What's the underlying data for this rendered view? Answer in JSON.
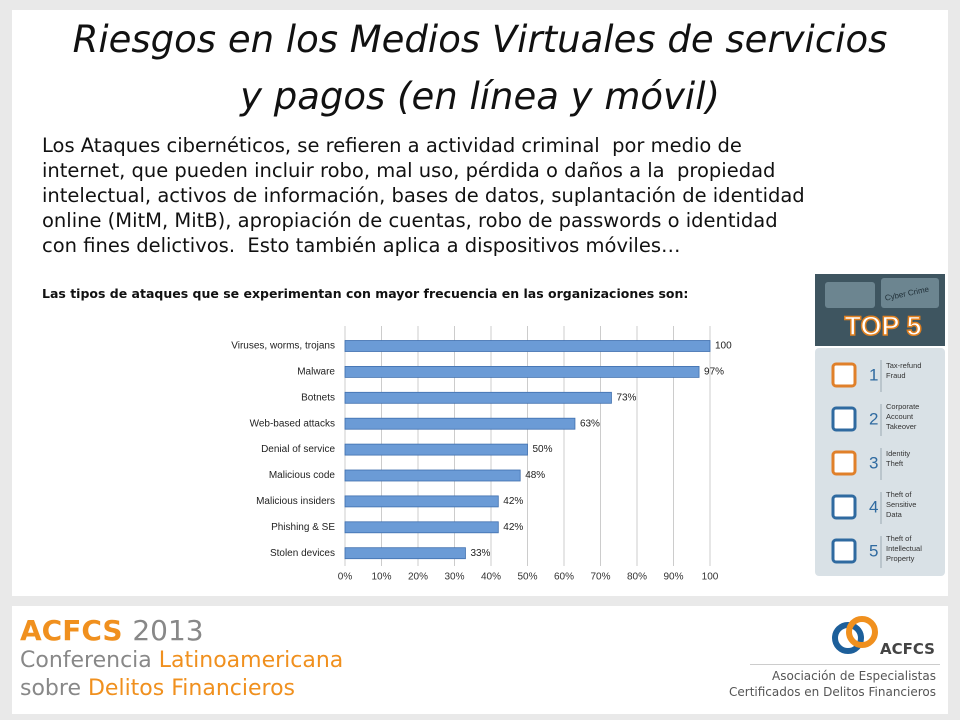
{
  "slide": {
    "title_lines": [
      "Riesgos en los Medios Virtuales de servicios",
      "y pagos (en línea y móvil)"
    ],
    "body_lines": [
      "Los Ataques cibernéticos, se refieren a actividad criminal  por medio de",
      "internet, que pueden incluir robo, mal uso, pérdida o daños a la  propiedad",
      "intelectual, activos de información, bases de datos, suplantación de identidad",
      "online (MitM, MitB), apropiación de cuentas, robo de passwords o identidad",
      "con fines delictivos.  Esto también aplica a dispositivos móviles…"
    ],
    "subtitle": "Las tipos de ataques que se experimentan con mayor frecuencia en las organizaciones son:"
  },
  "chart_data": {
    "type": "hbar",
    "categories": [
      "Viruses, worms, trojans",
      "Malware",
      "Botnets",
      "Web-based attacks",
      "Denial of service",
      "Malicious code",
      "Malicious insiders",
      "Phishing & SE",
      "Stolen devices"
    ],
    "values": [
      100,
      97,
      73,
      63,
      50,
      48,
      42,
      42,
      33
    ],
    "value_labels": [
      "100%",
      "97%",
      "73%",
      "63%",
      "50%",
      "48%",
      "42%",
      "42%",
      "33%"
    ],
    "color": "#6b9bd6",
    "xlim": [
      0,
      100
    ],
    "xticks": [
      {
        "value": 0,
        "label": "0%"
      },
      {
        "value": 10,
        "label": "10%"
      },
      {
        "value": 20,
        "label": "20%"
      },
      {
        "value": 30,
        "label": "30%"
      },
      {
        "value": 40,
        "label": "40%"
      },
      {
        "value": 50,
        "label": "50%"
      },
      {
        "value": 60,
        "label": "60%"
      },
      {
        "value": 70,
        "label": "70%"
      },
      {
        "value": 80,
        "label": "80%"
      },
      {
        "value": 90,
        "label": "90%"
      },
      100
    ],
    "grid": true
  },
  "sidebar": {
    "header_small": "Cyber Crime",
    "header": "TOP 5",
    "items": [
      {
        "number": "1",
        "lines": [
          "Tax-refund",
          "Fraud"
        ]
      },
      {
        "number": "2",
        "lines": [
          "Corporate",
          "Account",
          "Takeover"
        ]
      },
      {
        "number": "3",
        "lines": [
          "Identity",
          "Theft"
        ]
      },
      {
        "number": "4",
        "lines": [
          "Theft of",
          "Sensitive",
          "Data"
        ]
      },
      {
        "number": "5",
        "lines": [
          "Theft of",
          "Intellectual",
          "Property"
        ]
      }
    ]
  },
  "footer": {
    "brand": "ACFCS",
    "year": "2013",
    "line2": [
      "Conferencia",
      "Latinoamericana"
    ],
    "line3": [
      "sobre",
      "Delitos Financieros"
    ],
    "logo_text": "ACFCS",
    "org_lines": [
      "Asociación de Especialistas",
      "Certificados en Delitos Financieros"
    ]
  }
}
